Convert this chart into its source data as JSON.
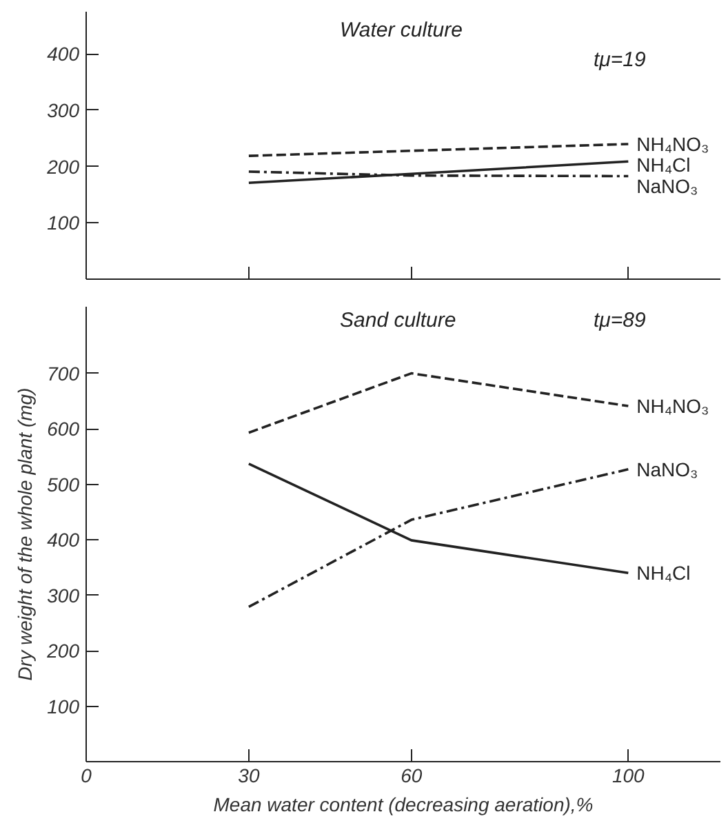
{
  "chart_data": [
    {
      "type": "line",
      "annotations": [
        "Water culture",
        "tμ=19"
      ],
      "x": [
        30,
        60,
        100
      ],
      "xlim": [
        0,
        117
      ],
      "xticks": [
        30,
        60,
        100
      ],
      "ylim": [
        0,
        475
      ],
      "yticks": [
        100,
        200,
        300,
        400
      ],
      "tick_labels": "y",
      "grid": false,
      "legend": false,
      "marker": "none",
      "series": [
        {
          "name": "NH₄NO₃",
          "color": "#222222",
          "line_style": "dashed",
          "values": [
            219,
            228,
            240
          ]
        },
        {
          "name": "NH₄Cl",
          "color": "#222222",
          "line_style": "solid",
          "values": [
            171,
            187,
            209
          ]
        },
        {
          "name": "NaNO₃",
          "color": "#222222",
          "line_style": "dashdot",
          "values": [
            191,
            184,
            183
          ]
        }
      ]
    },
    {
      "type": "line",
      "annotations": [
        "Sand culture",
        "tμ=89"
      ],
      "x": [
        30,
        60,
        100
      ],
      "xlabel": "Mean water content (decreasing aeration),%",
      "ylabel": "Dry weight of the whole plant (mg)",
      "xlim": [
        0,
        117
      ],
      "xticks": [
        0,
        30,
        60,
        100
      ],
      "ylim": [
        0,
        820
      ],
      "yticks": [
        100,
        200,
        300,
        400,
        500,
        600,
        700
      ],
      "grid": false,
      "legend": false,
      "marker": "none",
      "series": [
        {
          "name": "NH₄NO₃",
          "color": "#222222",
          "line_style": "dashed",
          "values": [
            593,
            700,
            641
          ]
        },
        {
          "name": "NH₄Cl",
          "color": "#222222",
          "line_style": "solid",
          "values": [
            537,
            399,
            340
          ]
        },
        {
          "name": "NaNO₃",
          "color": "#222222",
          "line_style": "dashdot",
          "values": [
            279,
            436,
            527
          ]
        }
      ]
    }
  ]
}
